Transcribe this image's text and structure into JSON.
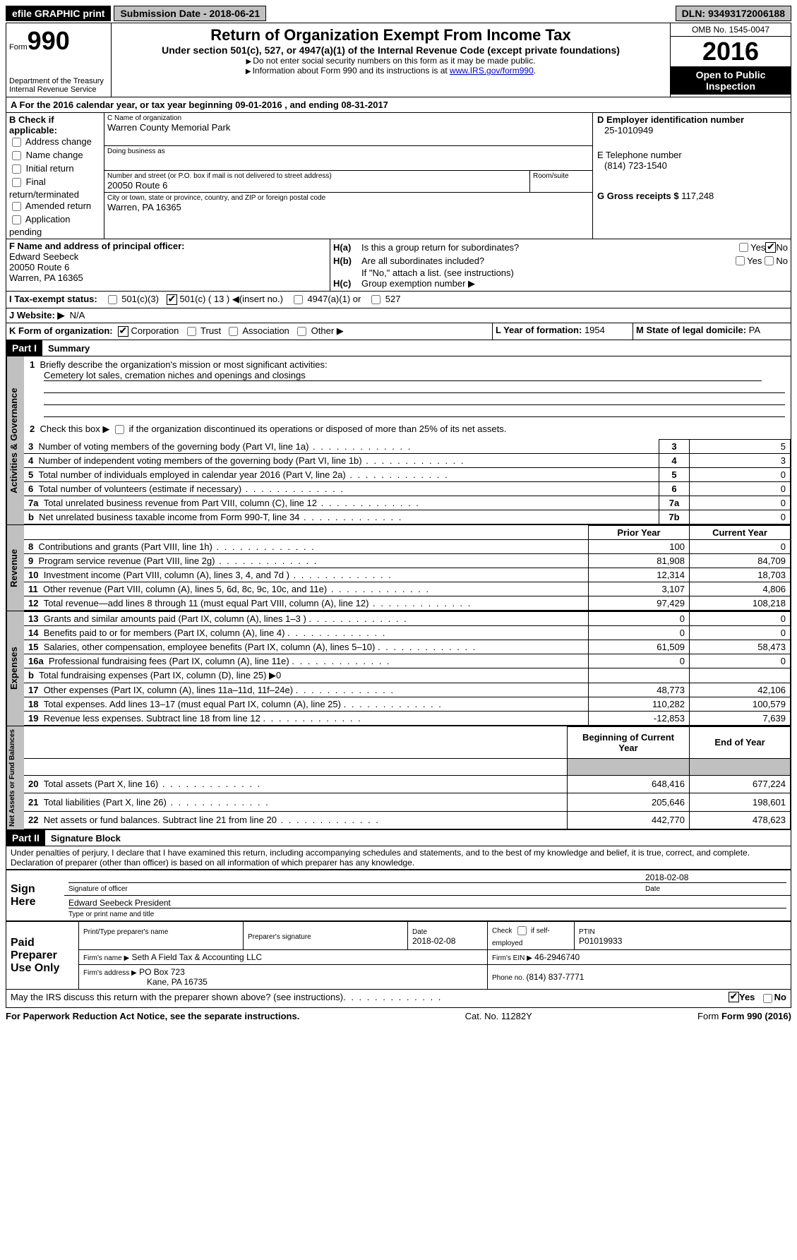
{
  "topbar": {
    "efile": "efile GRAPHIC print",
    "subdate_lbl": "Submission Date - ",
    "subdate": "2018-06-21",
    "dln_lbl": "DLN: ",
    "dln": "93493172006188"
  },
  "header": {
    "form_lbl": "Form",
    "form_num": "990",
    "dept1": "Department of the Treasury",
    "dept2": "Internal Revenue Service",
    "title": "Return of Organization Exempt From Income Tax",
    "subtitle": "Under section 501(c), 527, or 4947(a)(1) of the Internal Revenue Code (except private foundations)",
    "ssn": "Do not enter social security numbers on this form as it may be made public.",
    "info": "Information about Form 990 and its instructions is at ",
    "info_link": "www.IRS.gov/form990",
    "omb": "OMB No. 1545-0047",
    "year": "2016",
    "otp1": "Open to Public",
    "otp2": "Inspection"
  },
  "secA": {
    "label": "A  For the 2016 calendar year, or tax year beginning 09-01-2016  , and ending 08-31-2017"
  },
  "secB": {
    "label": "B Check if applicable:",
    "addr": "Address change",
    "name": "Name change",
    "init": "Initial return",
    "final": "Final return/terminated",
    "amend": "Amended return",
    "app": "Application pending"
  },
  "secC": {
    "name_lbl": "C Name of organization",
    "name": "Warren County Memorial Park",
    "dba_lbl": "Doing business as",
    "addr_lbl": "Number and street (or P.O. box if mail is not delivered to street address)",
    "addr": "20050 Route 6",
    "room_lbl": "Room/suite",
    "city_lbl": "City or town, state or province, country, and ZIP or foreign postal code",
    "city": "Warren, PA  16365"
  },
  "secD": {
    "label": "D Employer identification number",
    "val": "25-1010949"
  },
  "secE": {
    "label": "E Telephone number",
    "val": "(814) 723-1540"
  },
  "secG": {
    "label": "G Gross receipts $ ",
    "val": "117,248"
  },
  "secF": {
    "label": "F  Name and address of principal officer:",
    "name": "Edward Seebeck",
    "addr1": "20050 Route 6",
    "addr2": "Warren, PA  16365"
  },
  "secH": {
    "a_lbl": "H(a)",
    "a_txt": "Is this a group return for subordinates?",
    "b_lbl": "H(b)",
    "b_txt": "Are all subordinates included?",
    "b_note": "If \"No,\" attach a list. (see instructions)",
    "c_lbl": "H(c)",
    "c_txt": "Group exemption number ▶",
    "yes": "Yes",
    "no": "No"
  },
  "secI": {
    "label": "I    Tax-exempt status:",
    "c3": "501(c)(3)",
    "c": "501(c) ( 13 ) ◀(insert no.)",
    "a947": "4947(a)(1) or",
    "s527": "527"
  },
  "secJ": {
    "label": "J   Website: ▶",
    "val": "N/A"
  },
  "secK": {
    "label": "K Form of organization:",
    "corp": "Corporation",
    "trust": "Trust",
    "assoc": "Association",
    "other": "Other ▶"
  },
  "secL": {
    "label": "L Year of formation: ",
    "val": "1954"
  },
  "secM": {
    "label": "M State of legal domicile: ",
    "val": "PA"
  },
  "partI": {
    "label": "Part I",
    "title": "Summary",
    "l1_lbl": "1",
    "l1_txt": "Briefly describe the organization's mission or most significant activities:",
    "l1_val": "Cemetery lot sales, cremation niches and openings and closings",
    "l2_lbl": "2",
    "l2_txt": "Check this box ▶",
    "l2_txt2": "if the organization discontinued its operations or disposed of more than 25% of its net assets.",
    "rows_ag": [
      {
        "n": "3",
        "t": "Number of voting members of the governing body (Part VI, line 1a)",
        "v": "5"
      },
      {
        "n": "4",
        "t": "Number of independent voting members of the governing body (Part VI, line 1b)",
        "v": "3"
      },
      {
        "n": "5",
        "t": "Total number of individuals employed in calendar year 2016 (Part V, line 2a)",
        "v": "0"
      },
      {
        "n": "6",
        "t": "Total number of volunteers (estimate if necessary)",
        "v": "0"
      },
      {
        "n": "7a",
        "t": "Total unrelated business revenue from Part VIII, column (C), line 12",
        "v": "0"
      },
      {
        "n": "b",
        "t": "Net unrelated business taxable income from Form 990-T, line 34",
        "nr": "7b",
        "v": "0"
      }
    ],
    "hdr_py": "Prior Year",
    "hdr_cy": "Current Year",
    "rows_rev": [
      {
        "n": "8",
        "t": "Contributions and grants (Part VIII, line 1h)",
        "py": "100",
        "cy": "0"
      },
      {
        "n": "9",
        "t": "Program service revenue (Part VIII, line 2g)",
        "py": "81,908",
        "cy": "84,709"
      },
      {
        "n": "10",
        "t": "Investment income (Part VIII, column (A), lines 3, 4, and 7d )",
        "py": "12,314",
        "cy": "18,703"
      },
      {
        "n": "11",
        "t": "Other revenue (Part VIII, column (A), lines 5, 6d, 8c, 9c, 10c, and 11e)",
        "py": "3,107",
        "cy": "4,806"
      },
      {
        "n": "12",
        "t": "Total revenue—add lines 8 through 11 (must equal Part VIII, column (A), line 12)",
        "py": "97,429",
        "cy": "108,218"
      }
    ],
    "rows_exp": [
      {
        "n": "13",
        "t": "Grants and similar amounts paid (Part IX, column (A), lines 1–3 )",
        "py": "0",
        "cy": "0"
      },
      {
        "n": "14",
        "t": "Benefits paid to or for members (Part IX, column (A), line 4)",
        "py": "0",
        "cy": "0"
      },
      {
        "n": "15",
        "t": "Salaries, other compensation, employee benefits (Part IX, column (A), lines 5–10)",
        "py": "61,509",
        "cy": "58,473"
      },
      {
        "n": "16a",
        "t": "Professional fundraising fees (Part IX, column (A), line 11e)",
        "py": "0",
        "cy": "0"
      },
      {
        "n": "b",
        "t": "Total fundraising expenses (Part IX, column (D), line 25) ▶0",
        "py": "",
        "cy": "",
        "gray": true
      },
      {
        "n": "17",
        "t": "Other expenses (Part IX, column (A), lines 11a–11d, 11f–24e)",
        "py": "48,773",
        "cy": "42,106"
      },
      {
        "n": "18",
        "t": "Total expenses. Add lines 13–17 (must equal Part IX, column (A), line 25)",
        "py": "110,282",
        "cy": "100,579"
      },
      {
        "n": "19",
        "t": "Revenue less expenses. Subtract line 18 from line 12",
        "py": "-12,853",
        "cy": "7,639"
      }
    ],
    "hdr_bcy": "Beginning of Current Year",
    "hdr_eoy": "End of Year",
    "rows_na": [
      {
        "n": "20",
        "t": "Total assets (Part X, line 16)",
        "py": "648,416",
        "cy": "677,224"
      },
      {
        "n": "21",
        "t": "Total liabilities (Part X, line 26)",
        "py": "205,646",
        "cy": "198,601"
      },
      {
        "n": "22",
        "t": "Net assets or fund balances. Subtract line 21 from line 20",
        "py": "442,770",
        "cy": "478,623"
      }
    ],
    "vlabels": {
      "ag": "Activities & Governance",
      "rev": "Revenue",
      "exp": "Expenses",
      "na": "Net Assets or Fund Balances"
    }
  },
  "partII": {
    "label": "Part II",
    "title": "Signature Block",
    "decl": "Under penalties of perjury, I declare that I have examined this return, including accompanying schedules and statements, and to the best of my knowledge and belief, it is true, correct, and complete. Declaration of preparer (other than officer) is based on all information of which preparer has any knowledge.",
    "sign_here": "Sign Here",
    "sig_officer": "Signature of officer",
    "sig_date": "2018-02-08",
    "date_lbl": "Date",
    "name_title": "Edward Seebeck President",
    "name_title_lbl": "Type or print name and title",
    "paid_prep": "Paid Preparer Use Only",
    "print_name_lbl": "Print/Type preparer's name",
    "prep_sig_lbl": "Preparer's signature",
    "prep_date_lbl": "Date",
    "prep_date": "2018-02-08",
    "check_lbl": "Check",
    "check_if": "if self-employed",
    "ptin_lbl": "PTIN",
    "ptin": "P01019933",
    "firm_name_lbl": "Firm's name     ▶",
    "firm_name": "Seth A Field Tax & Accounting LLC",
    "firm_ein_lbl": "Firm's EIN ▶",
    "firm_ein": "46-2946740",
    "firm_addr_lbl": "Firm's address ▶",
    "firm_addr1": "PO Box 723",
    "firm_addr2": "Kane, PA  16735",
    "phone_lbl": "Phone no. ",
    "phone": "(814) 837-7771",
    "discuss": "May the IRS discuss this return with the preparer shown above? (see instructions)",
    "yes": "Yes",
    "no": "No"
  },
  "footer": {
    "pra": "For Paperwork Reduction Act Notice, see the separate instructions.",
    "cat": "Cat. No. 11282Y",
    "form": "Form 990 (2016)"
  }
}
